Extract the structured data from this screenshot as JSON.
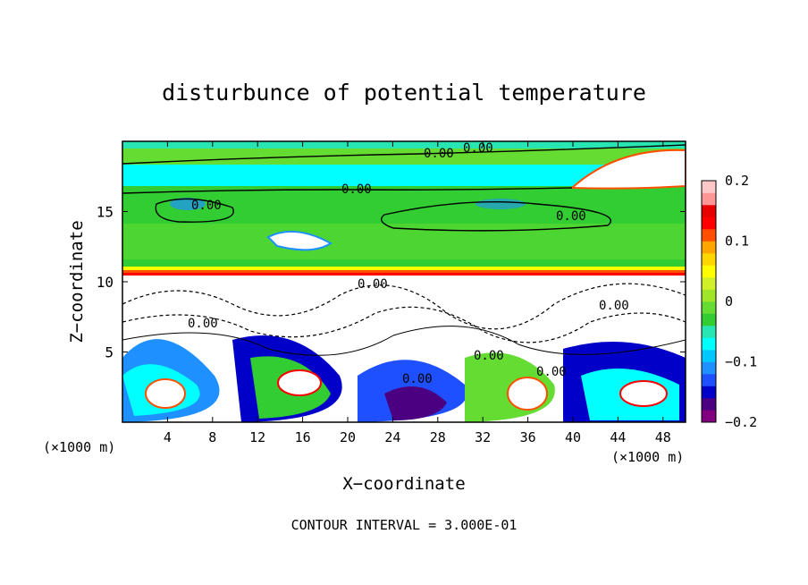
{
  "chart_data": {
    "type": "heatmap",
    "title": "disturbunce of potential temperature",
    "xlabel": "X−coordinate",
    "ylabel": "Z−coordinate",
    "x_unit_left": "(×1000 m)",
    "x_unit_right": "(×1000 m)",
    "xlim": [
      0,
      50
    ],
    "ylim": [
      0,
      20
    ],
    "xticks": [
      "4",
      "8",
      "12",
      "16",
      "20",
      "24",
      "28",
      "32",
      "36",
      "40",
      "44",
      "48"
    ],
    "yticks": [
      "5",
      "10",
      "15"
    ],
    "colorbar": {
      "range": [
        -0.2,
        0.2
      ],
      "tick_labels": [
        "0.2",
        "0.1",
        "0",
        "−0.1",
        "−0.2"
      ],
      "colors": [
        "#800080",
        "#4b0082",
        "#0000c8",
        "#1e50ff",
        "#1e90ff",
        "#00c8ff",
        "#00ffff",
        "#28e6b4",
        "#32cd32",
        "#64dc32",
        "#a0e628",
        "#d2f028",
        "#ffff00",
        "#ffd700",
        "#ffa500",
        "#ff5000",
        "#ff0000",
        "#e60000",
        "#ff9696",
        "#ffc8c8"
      ]
    },
    "contour_labels": [
      "0.00",
      "0.00",
      "0.00",
      "0.00",
      "0.00",
      "0.00",
      "0.00",
      "0.00",
      "0.00",
      "0.00",
      "0.00"
    ],
    "annotation": "CONTOUR INTERVAL = 3.000E-01"
  }
}
